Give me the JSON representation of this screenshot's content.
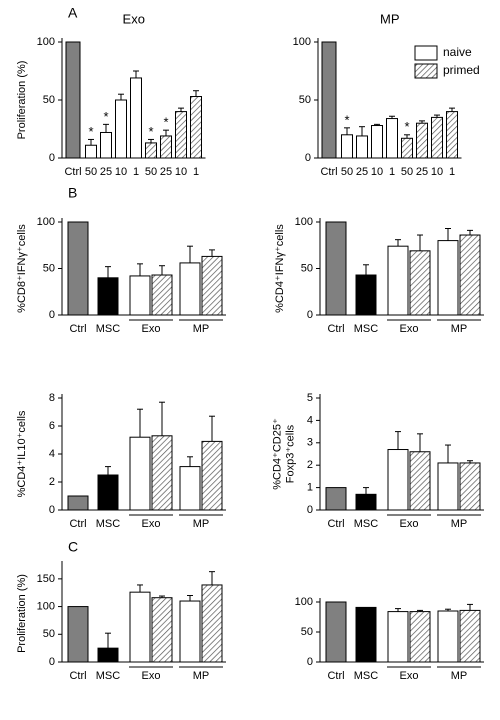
{
  "chart_data": [
    {
      "type": "bar",
      "panel": "A",
      "title": "Exo",
      "y_label": [
        "Proliferation (%)"
      ],
      "categories": [
        "Ctrl",
        "50",
        "25",
        "10",
        "1",
        "50",
        "25",
        "10",
        "1"
      ],
      "values": [
        100,
        11,
        22,
        50,
        69,
        13,
        19,
        40,
        53
      ],
      "errors": [
        0,
        5,
        7,
        5,
        6,
        3,
        5,
        3,
        5
      ],
      "bar_styles": [
        "gray",
        "white",
        "white",
        "white",
        "white",
        "hatched",
        "hatched",
        "hatched",
        "hatched"
      ],
      "stars": [
        {
          "index": 1,
          "label": "*"
        },
        {
          "index": 2,
          "label": "*"
        },
        {
          "index": 5,
          "label": "*"
        },
        {
          "index": 6,
          "label": "*"
        }
      ],
      "ylim": [
        0,
        100
      ],
      "yticks": [
        0,
        50,
        100
      ]
    },
    {
      "type": "bar",
      "title": "MP",
      "categories": [
        "Ctrl",
        "50",
        "25",
        "10",
        "1",
        "50",
        "25",
        "10",
        "1"
      ],
      "values": [
        100,
        20,
        19,
        28,
        34,
        17,
        30,
        35,
        40
      ],
      "errors": [
        0,
        6,
        8,
        1,
        2,
        3,
        2,
        2,
        3
      ],
      "bar_styles": [
        "gray",
        "white",
        "white",
        "white",
        "white",
        "hatched",
        "hatched",
        "hatched",
        "hatched"
      ],
      "stars": [
        {
          "index": 1,
          "label": "*"
        },
        {
          "index": 5,
          "label": "*"
        }
      ],
      "legend": [
        {
          "label": "naive",
          "style": "white"
        },
        {
          "label": "primed",
          "style": "hatched"
        }
      ],
      "legend_position": "upper right",
      "ylim": [
        0,
        100
      ],
      "yticks": [
        0,
        50,
        100
      ]
    },
    {
      "type": "grouped",
      "panel": "B",
      "y_label": [
        "%CD8⁺IFNγ⁺cells"
      ],
      "categories": [
        "Ctrl",
        "MSC",
        null,
        null,
        null,
        null
      ],
      "groups": [
        {
          "label": "Exo",
          "start": 2,
          "end": 3
        },
        {
          "label": "MP",
          "start": 4,
          "end": 5
        }
      ],
      "values": [
        100,
        40,
        42,
        43,
        56,
        63
      ],
      "errors": [
        0,
        12,
        13,
        10,
        18,
        7
      ],
      "bar_styles": [
        "gray",
        "black",
        "white",
        "hatched",
        "white",
        "hatched"
      ],
      "ylim": [
        0,
        100
      ],
      "yticks": [
        0,
        50,
        100
      ]
    },
    {
      "type": "grouped",
      "y_label": [
        "%CD4⁺IFNγ⁺cells"
      ],
      "categories": [
        "Ctrl",
        "MSC",
        null,
        null,
        null,
        null
      ],
      "groups": [
        {
          "label": "Exo",
          "start": 2,
          "end": 3
        },
        {
          "label": "MP",
          "start": 4,
          "end": 5
        }
      ],
      "values": [
        100,
        43,
        74,
        69,
        80,
        86
      ],
      "errors": [
        0,
        11,
        7,
        17,
        13,
        5
      ],
      "bar_styles": [
        "gray",
        "black",
        "white",
        "hatched",
        "white",
        "hatched"
      ],
      "ylim": [
        0,
        100
      ],
      "yticks": [
        0,
        50,
        100
      ]
    },
    {
      "type": "grouped",
      "y_label": [
        "%CD4⁺IL10⁺cells"
      ],
      "categories": [
        "Ctrl",
        "MSC",
        null,
        null,
        null,
        null
      ],
      "groups": [
        {
          "label": "Exo",
          "start": 2,
          "end": 3
        },
        {
          "label": "MP",
          "start": 4,
          "end": 5
        }
      ],
      "values": [
        1,
        2.5,
        5.2,
        5.3,
        3.1,
        4.9
      ],
      "errors": [
        0,
        0.6,
        2,
        2.4,
        0.7,
        1.8
      ],
      "bar_styles": [
        "gray",
        "black",
        "white",
        "hatched",
        "white",
        "hatched"
      ],
      "ylim": [
        0,
        8
      ],
      "yticks": [
        0,
        2,
        4,
        6,
        8
      ]
    },
    {
      "type": "grouped",
      "y_label": [
        "%CD4⁺CD25⁺",
        "Foxp3⁺cells"
      ],
      "categories": [
        "Ctrl",
        "MSC",
        null,
        null,
        null,
        null
      ],
      "groups": [
        {
          "label": "Exo",
          "start": 2,
          "end": 3
        },
        {
          "label": "MP",
          "start": 4,
          "end": 5
        }
      ],
      "values": [
        1,
        0.7,
        2.7,
        2.6,
        2.1,
        2.1
      ],
      "errors": [
        0,
        0.3,
        0.8,
        0.8,
        0.8,
        0.1
      ],
      "bar_styles": [
        "gray",
        "black",
        "white",
        "hatched",
        "white",
        "hatched"
      ],
      "ylim": [
        0,
        5
      ],
      "yticks": [
        0,
        1,
        2,
        3,
        4,
        5
      ]
    },
    {
      "type": "grouped",
      "panel": "C",
      "y_label": [
        "Proliferation (%)"
      ],
      "categories": [
        "Ctrl",
        "MSC",
        null,
        null,
        null,
        null
      ],
      "groups": [
        {
          "label": "Exo",
          "start": 2,
          "end": 3
        },
        {
          "label": "MP",
          "start": 4,
          "end": 5
        }
      ],
      "values": [
        100,
        25,
        126,
        116,
        110,
        139
      ],
      "errors": [
        0,
        27,
        13,
        3,
        10,
        24
      ],
      "bar_styles": [
        "gray",
        "black",
        "white",
        "hatched",
        "white",
        "hatched"
      ],
      "ylim": [
        0,
        175
      ],
      "yticks": [
        0,
        50,
        100,
        150
      ]
    },
    {
      "type": "grouped",
      "categories": [
        "Ctrl",
        "MSC",
        null,
        null,
        null,
        null
      ],
      "groups": [
        {
          "label": "Exo",
          "start": 2,
          "end": 3
        },
        {
          "label": "MP",
          "start": 4,
          "end": 5
        }
      ],
      "values": [
        100,
        91,
        84,
        84,
        85,
        86
      ],
      "errors": [
        0,
        0,
        5,
        2,
        3,
        10
      ],
      "bar_styles": [
        "gray",
        "black",
        "white",
        "hatched",
        "white",
        "hatched"
      ],
      "ylim": [
        0,
        100
      ],
      "yticks": [
        0,
        50,
        100
      ]
    }
  ]
}
